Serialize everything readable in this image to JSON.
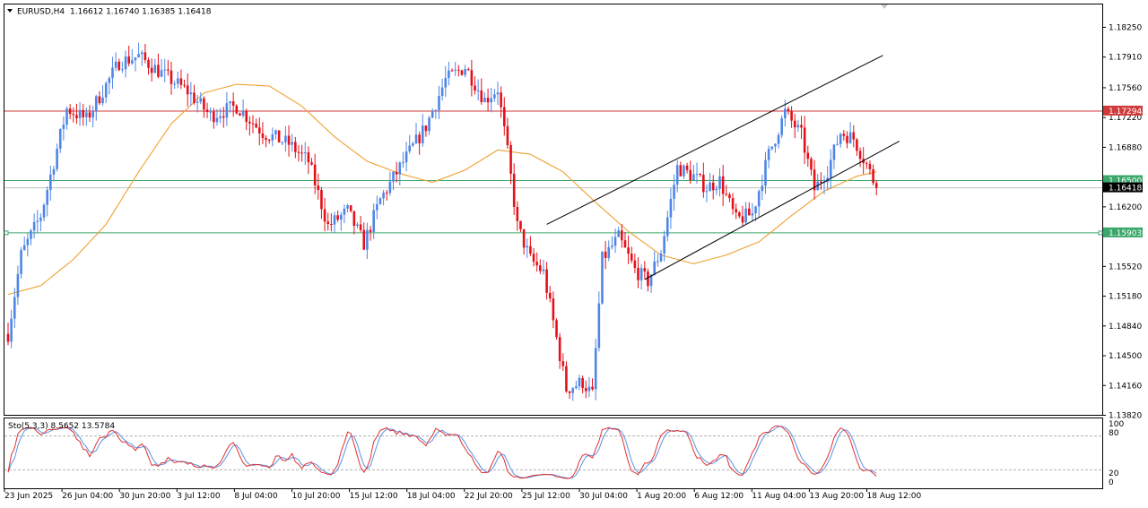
{
  "header": {
    "symbol": "EURUSD,H4",
    "ohlc": "1.16612 1.16740 1.16385 1.16418"
  },
  "indicator": {
    "label": "Sto(5,3,3) 8.5652 13.5784",
    "levels": [
      "100",
      "80",
      "20",
      "0"
    ]
  },
  "colors": {
    "bull": "#4f86e6",
    "bear": "#e4101a",
    "ma": "#f0a030",
    "sto_main": "#e03030",
    "sto_signal": "#5a92e8",
    "resistance": "#d13a3a",
    "support": "#3aa86a",
    "price_bg": "#000000"
  },
  "chart_data": {
    "type": "candlestick",
    "symbol": "EURUSD",
    "timeframe": "H4",
    "ylim": [
      1.1382,
      1.1857
    ],
    "y_ticks": [
      "1.18250",
      "1.17910",
      "1.17560",
      "1.17220",
      "1.16880",
      "1.16200",
      "1.15520",
      "1.15180",
      "1.14840",
      "1.14500",
      "1.14160",
      "1.13820"
    ],
    "x_labels": [
      "23 Jun 2025",
      "26 Jun 04:00",
      "30 Jun 20:00",
      "3 Jul 12:00",
      "8 Jul 04:00",
      "10 Jul 20:00",
      "15 Jul 12:00",
      "18 Jul 04:00",
      "22 Jul 20:00",
      "25 Jul 12:00",
      "30 Jul 04:00",
      "1 Aug 20:00",
      "6 Aug 12:00",
      "11 Aug 04:00",
      "13 Aug 20:00",
      "18 Aug 12:00"
    ],
    "horizontal_lines": [
      {
        "price": 1.17294,
        "label": "1.17294",
        "role": "resistance"
      },
      {
        "price": 1.165,
        "label": "1.16500",
        "role": "level"
      },
      {
        "price": 1.15903,
        "label": "1.15903",
        "role": "support"
      }
    ],
    "current_price": {
      "price": 1.16418,
      "label": "1.16418"
    },
    "close_path": [
      {
        "bar": 0,
        "close": 1.1475
      },
      {
        "bar": 4,
        "close": 1.1565
      },
      {
        "bar": 10,
        "close": 1.161
      },
      {
        "bar": 18,
        "close": 1.1732
      },
      {
        "bar": 24,
        "close": 1.172
      },
      {
        "bar": 34,
        "close": 1.1785
      },
      {
        "bar": 40,
        "close": 1.1792
      },
      {
        "bar": 48,
        "close": 1.177
      },
      {
        "bar": 55,
        "close": 1.1752
      },
      {
        "bar": 62,
        "close": 1.1724
      },
      {
        "bar": 70,
        "close": 1.1735
      },
      {
        "bar": 78,
        "close": 1.1705
      },
      {
        "bar": 86,
        "close": 1.1692
      },
      {
        "bar": 92,
        "close": 1.1672
      },
      {
        "bar": 98,
        "close": 1.1598
      },
      {
        "bar": 104,
        "close": 1.1615
      },
      {
        "bar": 109,
        "close": 1.1578
      },
      {
        "bar": 114,
        "close": 1.1628
      },
      {
        "bar": 120,
        "close": 1.1665
      },
      {
        "bar": 128,
        "close": 1.1712
      },
      {
        "bar": 134,
        "close": 1.1765
      },
      {
        "bar": 140,
        "close": 1.178
      },
      {
        "bar": 146,
        "close": 1.1742
      },
      {
        "bar": 150,
        "close": 1.1755
      },
      {
        "bar": 153,
        "close": 1.1682
      },
      {
        "bar": 156,
        "close": 1.1598
      },
      {
        "bar": 160,
        "close": 1.156
      },
      {
        "bar": 164,
        "close": 1.1545
      },
      {
        "bar": 168,
        "close": 1.147
      },
      {
        "bar": 171,
        "close": 1.1412
      },
      {
        "bar": 176,
        "close": 1.142
      },
      {
        "bar": 179,
        "close": 1.1405
      },
      {
        "bar": 182,
        "close": 1.156
      },
      {
        "bar": 187,
        "close": 1.1585
      },
      {
        "bar": 192,
        "close": 1.1548
      },
      {
        "bar": 196,
        "close": 1.1535
      },
      {
        "bar": 200,
        "close": 1.157
      },
      {
        "bar": 205,
        "close": 1.1665
      },
      {
        "bar": 210,
        "close": 1.1655
      },
      {
        "bar": 214,
        "close": 1.1642
      },
      {
        "bar": 218,
        "close": 1.165
      },
      {
        "bar": 223,
        "close": 1.1605
      },
      {
        "bar": 228,
        "close": 1.1612
      },
      {
        "bar": 233,
        "close": 1.168
      },
      {
        "bar": 238,
        "close": 1.1728
      },
      {
        "bar": 243,
        "close": 1.1702
      },
      {
        "bar": 247,
        "close": 1.164
      },
      {
        "bar": 251,
        "close": 1.1662
      },
      {
        "bar": 255,
        "close": 1.1705
      },
      {
        "bar": 259,
        "close": 1.1698
      },
      {
        "bar": 263,
        "close": 1.1668
      },
      {
        "bar": 266,
        "close": 1.1642
      }
    ],
    "moving_average": [
      {
        "bar": 0,
        "value": 1.152
      },
      {
        "bar": 10,
        "value": 1.153
      },
      {
        "bar": 20,
        "value": 1.156
      },
      {
        "bar": 30,
        "value": 1.16
      },
      {
        "bar": 40,
        "value": 1.166
      },
      {
        "bar": 50,
        "value": 1.1715
      },
      {
        "bar": 60,
        "value": 1.175
      },
      {
        "bar": 70,
        "value": 1.176
      },
      {
        "bar": 80,
        "value": 1.1758
      },
      {
        "bar": 90,
        "value": 1.1735
      },
      {
        "bar": 100,
        "value": 1.17
      },
      {
        "bar": 110,
        "value": 1.1672
      },
      {
        "bar": 120,
        "value": 1.1658
      },
      {
        "bar": 130,
        "value": 1.1648
      },
      {
        "bar": 140,
        "value": 1.1662
      },
      {
        "bar": 150,
        "value": 1.1685
      },
      {
        "bar": 160,
        "value": 1.168
      },
      {
        "bar": 170,
        "value": 1.166
      },
      {
        "bar": 180,
        "value": 1.1625
      },
      {
        "bar": 190,
        "value": 1.1592
      },
      {
        "bar": 200,
        "value": 1.1565
      },
      {
        "bar": 210,
        "value": 1.1555
      },
      {
        "bar": 220,
        "value": 1.1565
      },
      {
        "bar": 230,
        "value": 1.158
      },
      {
        "bar": 240,
        "value": 1.161
      },
      {
        "bar": 250,
        "value": 1.1638
      },
      {
        "bar": 260,
        "value": 1.1655
      },
      {
        "bar": 266,
        "value": 1.166
      }
    ],
    "channel_lines": [
      {
        "name": "upper",
        "from": {
          "bar": 165,
          "price": 1.16
        },
        "to": {
          "bar": 268,
          "price": 1.1793
        }
      },
      {
        "name": "lower",
        "from": {
          "bar": 195,
          "price": 1.1537
        },
        "to": {
          "bar": 273,
          "price": 1.1695
        }
      }
    ],
    "stochastic": {
      "name": "Sto(5,3,3)",
      "main": 8.5652,
      "signal": 13.5784,
      "levels": [
        20,
        80
      ],
      "range": [
        0,
        100
      ]
    }
  }
}
